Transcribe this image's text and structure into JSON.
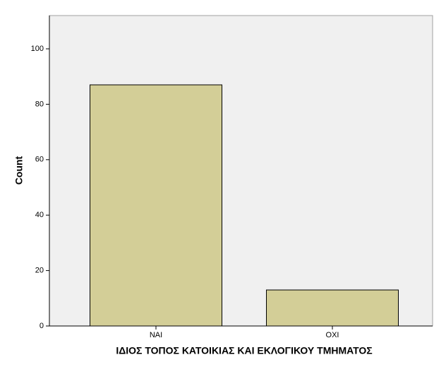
{
  "chart_data": {
    "type": "bar",
    "x_label": "ΙΔΙΟΣ ΤΟΠΟΣ ΚΑΤΟΙΚΙΑΣ ΚΑΙ ΕΚΛΟΓΙΚΟΥ ΤΜΗΜΑΤΟΣ",
    "y_label": "Count",
    "categories": [
      "ΝΑΙ",
      "ΟΧΙ"
    ],
    "values": [
      87,
      13
    ],
    "color": "#d3ce97",
    "ylim": [
      0,
      112
    ],
    "yticks": [
      0,
      20,
      40,
      60,
      80,
      100
    ],
    "grid": false
  }
}
